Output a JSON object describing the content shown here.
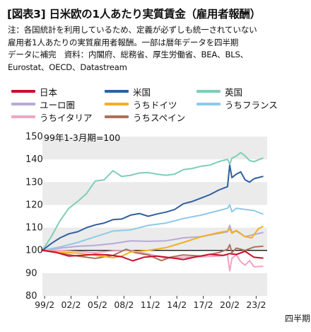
{
  "header": {
    "title": "[図表3] 日米欧の1人あたり実質賃金（雇用者報酬）",
    "note_lines": [
      "注：各国統計を利用しているため、定義が必ずしも統一されていない",
      "雇用者1人あたりの実質雇用者報酬。一部は暦年データを四半期",
      "データに補完　資料：内閣府、総務省、厚生労働省、BEA、BLS、",
      "Eurostat、OECD、Datastream"
    ]
  },
  "chart_data": {
    "type": "line",
    "title": "",
    "ylabel": "",
    "yaxis_caption": "99年1-3月期=100",
    "x_unit_label": "四半期",
    "categories": [
      "99/2",
      "02/2",
      "05/2",
      "08/2",
      "11/2",
      "14/2",
      "17/2",
      "20/2",
      "23/2"
    ],
    "x": [
      1999.25,
      2002.25,
      2005.25,
      2008.25,
      2011.25,
      2014.25,
      2017.25,
      2020.25,
      2023.25
    ],
    "xlim": [
      1999.0,
      2024.5
    ],
    "ylim": [
      80,
      150
    ],
    "yticks": [
      80,
      90,
      100,
      110,
      120,
      130,
      140,
      150
    ],
    "grid": "horizontal bands",
    "reference_line": 100,
    "legend_position": "top",
    "series": [
      {
        "name": "日本",
        "color": "#c8102e",
        "x": [
          1999.0,
          2000.5,
          2002.0,
          2003.5,
          2005.0,
          2006.5,
          2008.0,
          2009.25,
          2010.5,
          2012.0,
          2013.5,
          2015.0,
          2016.5,
          2018.0,
          2019.5,
          2020.25,
          2021.0,
          2022.0,
          2023.0,
          2024.0
        ],
        "values": [
          100,
          99.2,
          97.5,
          97.8,
          98.3,
          98.0,
          97.2,
          95.4,
          97.0,
          97.5,
          96.8,
          96.0,
          97.2,
          98.3,
          97.8,
          98.6,
          98.2,
          99.6,
          97.0,
          96.6
        ]
      },
      {
        "name": "米国",
        "color": "#2e5fa3",
        "x": [
          1999.0,
          2000.0,
          2001.0,
          2002.0,
          2003.0,
          2004.0,
          2005.0,
          2006.0,
          2007.0,
          2008.0,
          2009.0,
          2010.0,
          2011.0,
          2012.0,
          2013.0,
          2014.0,
          2015.0,
          2016.0,
          2017.0,
          2018.0,
          2019.0,
          2020.0,
          2020.25,
          2020.5,
          2021.0,
          2021.5,
          2022.0,
          2022.5,
          2023.0,
          2023.5,
          2024.0
        ],
        "values": [
          100,
          103.0,
          105.5,
          107.3,
          108.2,
          110.0,
          111.2,
          112.0,
          113.5,
          113.8,
          115.5,
          116.2,
          115.0,
          116.0,
          116.8,
          118.0,
          120.5,
          121.5,
          123.0,
          124.5,
          126.5,
          128.0,
          137.5,
          132.0,
          133.5,
          134.5,
          131.0,
          130.0,
          131.5,
          132.0,
          132.5
        ]
      },
      {
        "name": "英国",
        "color": "#7fcdb8",
        "x": [
          1999.0,
          2000.0,
          2001.0,
          2002.0,
          2003.0,
          2004.0,
          2005.0,
          2006.0,
          2007.0,
          2008.0,
          2009.0,
          2010.0,
          2011.0,
          2012.0,
          2013.0,
          2014.0,
          2015.0,
          2016.0,
          2017.0,
          2018.0,
          2019.0,
          2020.0,
          2020.25,
          2020.5,
          2021.0,
          2021.5,
          2022.0,
          2022.5,
          2023.0,
          2023.5,
          2024.0
        ],
        "values": [
          100,
          106.0,
          113.0,
          118.5,
          121.5,
          125.0,
          130.5,
          131.0,
          135.0,
          132.5,
          133.0,
          134.0,
          134.2,
          133.5,
          133.0,
          133.5,
          135.5,
          136.0,
          137.0,
          137.5,
          139.0,
          140.0,
          138.0,
          140.5,
          141.5,
          143.0,
          141.5,
          139.5,
          139.0,
          139.8,
          140.5
        ]
      },
      {
        "name": "ユーロ圏",
        "color": "#b7a9d6",
        "x": [
          1999.0,
          2001.0,
          2003.0,
          2005.0,
          2007.0,
          2009.0,
          2011.0,
          2013.0,
          2015.0,
          2017.0,
          2019.0,
          2020.0,
          2020.25,
          2020.5,
          2021.0,
          2022.0,
          2023.0,
          2024.0
        ],
        "values": [
          100,
          101.0,
          101.8,
          102.2,
          103.0,
          104.2,
          104.0,
          104.2,
          105.5,
          106.0,
          107.5,
          108.2,
          111.0,
          108.0,
          108.5,
          106.0,
          107.0,
          107.8
        ]
      },
      {
        "name": "うちドイツ",
        "color": "#f2b01e",
        "x": [
          1999.0,
          2001.0,
          2003.0,
          2005.0,
          2007.0,
          2008.0,
          2009.0,
          2011.0,
          2013.0,
          2015.0,
          2017.0,
          2019.0,
          2020.0,
          2020.25,
          2020.5,
          2021.0,
          2022.0,
          2022.75,
          2023.5,
          2024.0
        ],
        "values": [
          100,
          99.2,
          98.8,
          97.8,
          96.8,
          97.5,
          99.3,
          100.0,
          101.2,
          103.5,
          106.0,
          107.8,
          108.5,
          109.5,
          107.5,
          108.8,
          106.0,
          105.5,
          109.5,
          110.5
        ]
      },
      {
        "name": "うちフランス",
        "color": "#8ecae6",
        "x": [
          1999.0,
          2001.0,
          2003.0,
          2005.0,
          2007.0,
          2009.0,
          2011.0,
          2013.0,
          2015.0,
          2017.0,
          2019.0,
          2020.0,
          2020.25,
          2020.5,
          2021.0,
          2022.0,
          2023.0,
          2024.0
        ],
        "values": [
          100,
          101.5,
          103.5,
          106.0,
          108.5,
          109.0,
          111.0,
          112.0,
          114.0,
          115.5,
          117.5,
          118.5,
          120.0,
          117.0,
          118.5,
          118.0,
          117.5,
          116.0
        ]
      },
      {
        "name": "うちイタリア",
        "color": "#f4a3c0",
        "x": [
          1999.0,
          2001.0,
          2003.0,
          2005.0,
          2007.0,
          2009.0,
          2011.0,
          2013.0,
          2015.0,
          2017.0,
          2019.0,
          2020.0,
          2020.25,
          2020.5,
          2021.0,
          2021.5,
          2022.0,
          2022.5,
          2023.0,
          2024.0
        ],
        "values": [
          100,
          100.0,
          99.5,
          99.0,
          99.8,
          100.0,
          98.5,
          96.5,
          97.0,
          97.2,
          97.5,
          98.0,
          91.0,
          96.5,
          98.0,
          95.0,
          93.5,
          95.5,
          92.8,
          93.0
        ]
      },
      {
        "name": "うちスペイン",
        "color": "#a8745a",
        "x": [
          1999.0,
          2001.0,
          2003.0,
          2005.0,
          2007.0,
          2008.5,
          2009.5,
          2011.0,
          2012.5,
          2013.5,
          2015.0,
          2017.0,
          2019.0,
          2020.0,
          2020.25,
          2020.5,
          2021.0,
          2022.0,
          2023.0,
          2024.0
        ],
        "values": [
          100,
          98.8,
          97.5,
          96.5,
          97.8,
          100.5,
          99.0,
          98.0,
          95.5,
          97.0,
          98.0,
          97.5,
          99.0,
          100.5,
          102.5,
          99.0,
          101.0,
          100.0,
          101.5,
          101.8
        ]
      }
    ]
  }
}
